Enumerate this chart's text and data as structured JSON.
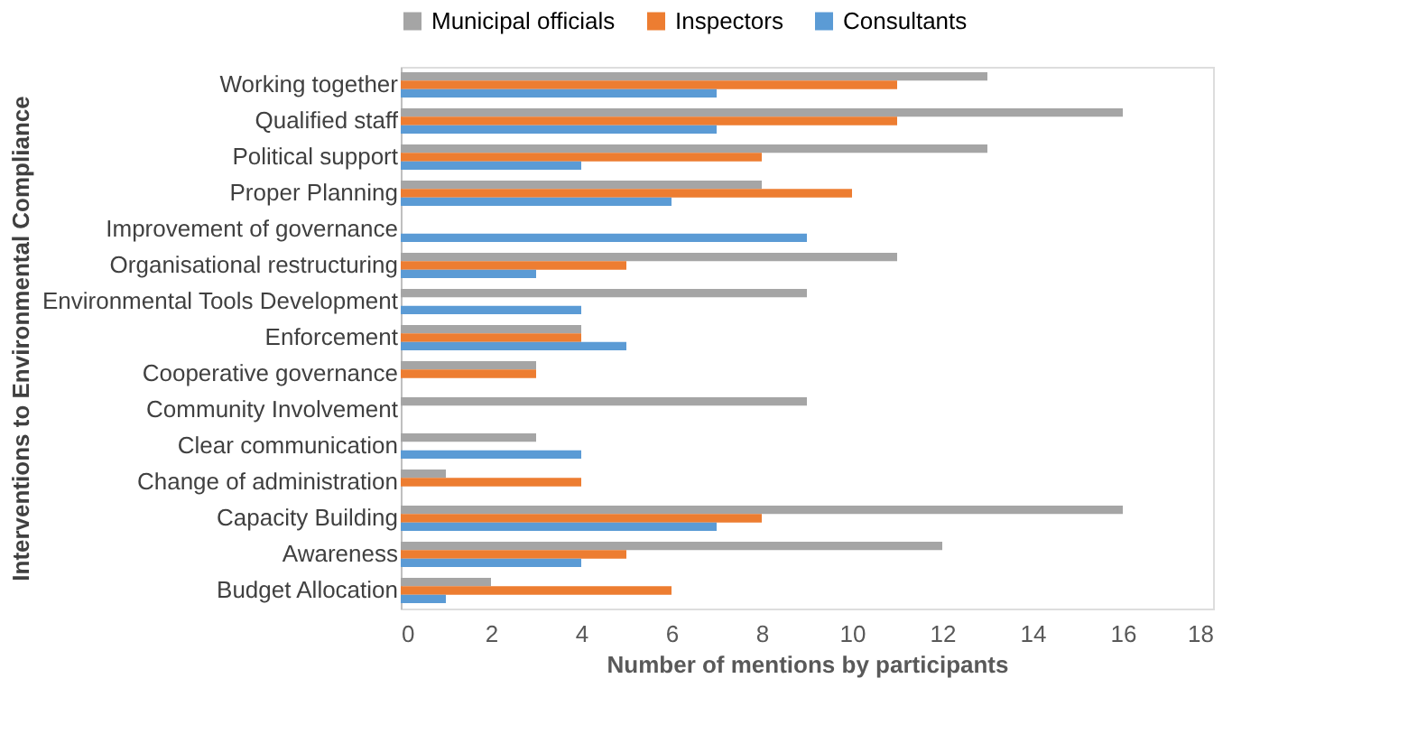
{
  "chart_data": {
    "type": "bar",
    "orientation": "horizontal",
    "xlabel": "Number of mentions by participants",
    "ylabel": "Interventions to Environmental Compliance",
    "categories": [
      "Working together",
      "Qualified staff",
      "Political support",
      "Proper Planning",
      "Improvement of governance",
      "Organisational restructuring",
      "Environmental Tools Development",
      "Enforcement",
      "Cooperative governance",
      "Community Involvement",
      "Clear communication",
      "Change of administration",
      "Capacity Building",
      "Awareness",
      "Budget Allocation"
    ],
    "series": [
      {
        "name": "Municipal officials",
        "color": "#a5a5a5",
        "values": [
          13,
          16,
          13,
          8,
          0,
          11,
          9,
          4,
          3,
          9,
          3,
          1,
          16,
          12,
          2
        ]
      },
      {
        "name": "Inspectors",
        "color": "#ed7d31",
        "values": [
          11,
          11,
          8,
          10,
          0,
          5,
          0,
          4,
          3,
          0,
          0,
          4,
          8,
          5,
          6
        ]
      },
      {
        "name": "Consultants",
        "color": "#5b9bd5",
        "values": [
          7,
          7,
          4,
          6,
          9,
          3,
          4,
          5,
          0,
          0,
          4,
          0,
          7,
          4,
          1
        ]
      }
    ],
    "xlim": [
      0,
      18
    ],
    "xticks": [
      0,
      2,
      4,
      6,
      8,
      10,
      12,
      14,
      16,
      18
    ],
    "grid": false,
    "legend": "top"
  }
}
